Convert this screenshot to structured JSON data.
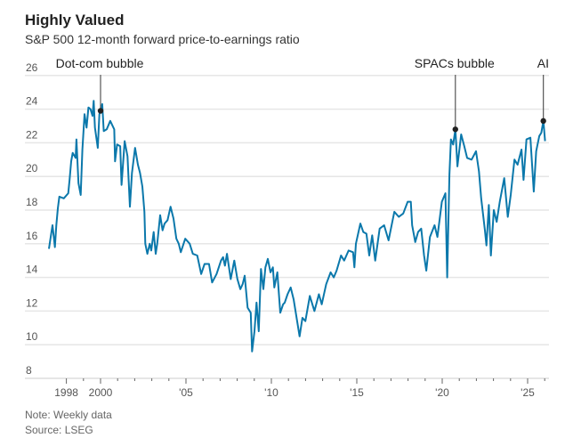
{
  "header": {
    "title": "Highly Valued",
    "subtitle": "S&P 500 12-month forward price-to-earnings ratio"
  },
  "footer": {
    "note": "Note: Weekly data",
    "source": "Source: LSEG"
  },
  "colors": {
    "line": "#0b78ab",
    "grid": "#e6e6e6",
    "annotation": "#555555",
    "marker": "#222222"
  },
  "chart_data": {
    "type": "line",
    "title": "Highly Valued",
    "subtitle": "S&P 500 12-month forward price-to-earnings ratio",
    "xlabel": "",
    "ylabel": "",
    "ylim": [
      8,
      26
    ],
    "xlim": [
      1996.3,
      2026.3
    ],
    "grid": true,
    "y_ticks": [
      8,
      10,
      12,
      14,
      16,
      18,
      20,
      22,
      24,
      26
    ],
    "y_tick_labels": [
      "8",
      "10",
      "12",
      "14",
      "16",
      "18",
      "20",
      "22",
      "24",
      "26"
    ],
    "x_ticks": [
      1998,
      2000,
      2005,
      2010,
      2015,
      2020,
      2025
    ],
    "x_tick_labels": [
      "1998",
      "2000",
      "'05",
      "'10",
      "'15",
      "'20",
      "'25"
    ],
    "x_minor_ticks_every_year": true,
    "series": [
      {
        "x": [
          1996.98,
          1997.07,
          1997.19,
          1997.33,
          1997.41,
          1997.5,
          1997.59,
          1997.85,
          1998.11,
          1998.19,
          1998.28,
          1998.37,
          1998.54,
          1998.59,
          1998.71,
          1998.84,
          1998.94,
          1999.06,
          1999.18,
          1999.29,
          1999.41,
          1999.53,
          1999.6,
          1999.67,
          1999.84,
          1999.93,
          2000.0,
          2000.1,
          2000.19,
          2000.36,
          2000.57,
          2000.8,
          2000.85,
          2000.97,
          2001.15,
          2001.23,
          2001.41,
          2001.58,
          2001.72,
          2001.84,
          2002.02,
          2002.19,
          2002.31,
          2002.45,
          2002.57,
          2002.62,
          2002.74,
          2002.88,
          2002.97,
          2003.11,
          2003.23,
          2003.32,
          2003.49,
          2003.63,
          2003.75,
          2003.92,
          2004.1,
          2004.27,
          2004.44,
          2004.58,
          2004.7,
          2004.96,
          2005.22,
          2005.4,
          2005.66,
          2005.89,
          2006.09,
          2006.35,
          2006.53,
          2006.79,
          2007.05,
          2007.17,
          2007.28,
          2007.4,
          2007.62,
          2007.83,
          2008.01,
          2008.18,
          2008.32,
          2008.44,
          2008.61,
          2008.79,
          2008.87,
          2009.01,
          2009.13,
          2009.26,
          2009.39,
          2009.53,
          2009.65,
          2009.79,
          2009.95,
          2010.09,
          2010.17,
          2010.35,
          2010.52,
          2010.69,
          2010.78,
          2010.95,
          2011.13,
          2011.3,
          2011.65,
          2011.82,
          2011.99,
          2012.25,
          2012.52,
          2012.78,
          2012.95,
          2013.21,
          2013.47,
          2013.65,
          2013.82,
          2014.08,
          2014.26,
          2014.52,
          2014.78,
          2014.86,
          2014.95,
          2015.21,
          2015.38,
          2015.56,
          2015.73,
          2015.9,
          2016.08,
          2016.34,
          2016.6,
          2016.86,
          2017.2,
          2017.46,
          2017.72,
          2017.98,
          2018.16,
          2018.24,
          2018.42,
          2018.59,
          2018.77,
          2018.94,
          2019.07,
          2019.28,
          2019.55,
          2019.72,
          2019.98,
          2020.19,
          2020.29,
          2020.42,
          2020.51,
          2020.64,
          2020.77,
          2020.89,
          2021.11,
          2021.29,
          2021.46,
          2021.72,
          2021.98,
          2022.15,
          2022.28,
          2022.5,
          2022.59,
          2022.73,
          2022.85,
          2023.02,
          2023.19,
          2023.37,
          2023.63,
          2023.84,
          2024.01,
          2024.23,
          2024.41,
          2024.64,
          2024.76,
          2024.93,
          2025.16,
          2025.36,
          2025.5,
          2025.68,
          2025.8,
          2025.92,
          2026.02
        ],
        "y": [
          15.7,
          16.3,
          17.1,
          15.8,
          17.1,
          18.1,
          18.8,
          18.7,
          19.0,
          19.8,
          20.9,
          21.4,
          21.1,
          22.2,
          19.6,
          18.9,
          21.6,
          23.7,
          22.9,
          24.1,
          24.0,
          23.6,
          24.5,
          22.9,
          21.7,
          23.7,
          23.9,
          24.3,
          22.7,
          22.8,
          23.3,
          22.8,
          20.9,
          21.9,
          21.8,
          19.5,
          22.1,
          21.2,
          18.2,
          20.2,
          21.7,
          20.7,
          20.2,
          19.4,
          17.9,
          16.0,
          15.4,
          16.0,
          15.6,
          16.7,
          15.4,
          16.0,
          17.7,
          16.8,
          17.2,
          17.4,
          18.2,
          17.5,
          16.3,
          16.0,
          15.5,
          16.3,
          16.0,
          15.4,
          15.3,
          14.2,
          14.8,
          14.8,
          13.7,
          14.2,
          15.0,
          15.2,
          14.7,
          15.4,
          13.9,
          15.0,
          13.9,
          13.3,
          13.6,
          14.1,
          12.2,
          11.9,
          9.6,
          10.8,
          12.5,
          10.8,
          14.5,
          13.3,
          14.6,
          15.1,
          14.3,
          14.6,
          13.4,
          14.3,
          11.9,
          12.4,
          12.5,
          13.0,
          13.4,
          12.7,
          10.5,
          11.6,
          11.4,
          12.9,
          12.0,
          13.0,
          12.4,
          13.6,
          14.3,
          14.0,
          14.4,
          15.3,
          15.0,
          15.6,
          15.5,
          14.6,
          16.0,
          17.2,
          16.7,
          16.6,
          15.3,
          16.5,
          15.0,
          16.9,
          17.1,
          16.2,
          17.9,
          17.6,
          17.8,
          18.5,
          18.5,
          17.1,
          16.1,
          16.7,
          16.9,
          15.3,
          14.4,
          16.4,
          17.1,
          16.4,
          18.5,
          19.0,
          14.0,
          20.1,
          22.2,
          21.9,
          22.8,
          20.6,
          22.5,
          21.8,
          21.1,
          21.0,
          21.5,
          20.3,
          18.7,
          16.8,
          15.9,
          18.3,
          15.3,
          18.0,
          17.3,
          18.5,
          19.9,
          17.6,
          18.9,
          21.0,
          20.7,
          21.6,
          19.8,
          22.2,
          22.3,
          19.1,
          21.5,
          22.4,
          22.6,
          23.3,
          22.1
        ]
      }
    ],
    "annotations": [
      {
        "label": "Dot-com bubble",
        "x": 2000.0,
        "y": 23.9
      },
      {
        "label": "SPACs bubble",
        "x": 2020.77,
        "y": 22.8
      },
      {
        "label": "AI",
        "x": 2025.92,
        "y": 23.3
      }
    ]
  }
}
